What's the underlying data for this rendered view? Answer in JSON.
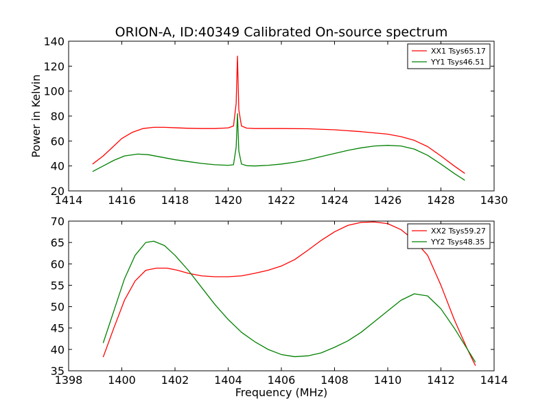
{
  "figure": {
    "title": "ORION-A, ID:40349 Calibrated On-source spectrum",
    "xlabel": "Frequency (MHz)"
  },
  "colors": {
    "xx": "#ff0000",
    "yy": "#008000"
  },
  "chart_data": [
    {
      "type": "line",
      "title": "ORION-A, ID:40349 Calibrated On-source spectrum",
      "xlabel": "",
      "ylabel": "Power in Kelvin",
      "xlim": [
        1414,
        1430
      ],
      "ylim": [
        20,
        140
      ],
      "xticks": [
        "1414",
        "1416",
        "1418",
        "1420",
        "1422",
        "1424",
        "1426",
        "1428",
        "1430"
      ],
      "yticks": [
        "20",
        "40",
        "60",
        "80",
        "100",
        "120",
        "140"
      ],
      "grid": false,
      "legend_position": "top-right",
      "series": [
        {
          "name": "XX1 Tsys65.17",
          "color": "#ff0000",
          "x": [
            1414.9,
            1415.3,
            1415.7,
            1416.0,
            1416.4,
            1416.8,
            1417.2,
            1417.6,
            1418.0,
            1418.5,
            1419.0,
            1419.5,
            1420.0,
            1420.2,
            1420.3,
            1420.35,
            1420.4,
            1420.5,
            1420.7,
            1421.0,
            1422.0,
            1423.0,
            1424.0,
            1425.0,
            1426.0,
            1426.5,
            1427.0,
            1427.5,
            1428.0,
            1428.5,
            1428.9
          ],
          "y": [
            41.5,
            48,
            56,
            62,
            67,
            70,
            71,
            71,
            70.6,
            70.2,
            70,
            70,
            70.5,
            72,
            90,
            128,
            85,
            72,
            70.3,
            70,
            70,
            69.8,
            69,
            67.5,
            65.5,
            63.5,
            60.5,
            55.5,
            48,
            40,
            34
          ]
        },
        {
          "name": "YY1 Tsys46.51",
          "color": "#008000",
          "x": [
            1414.9,
            1415.3,
            1415.7,
            1416.1,
            1416.6,
            1417.0,
            1417.5,
            1418.0,
            1418.5,
            1419.0,
            1419.5,
            1420.0,
            1420.2,
            1420.3,
            1420.35,
            1420.4,
            1420.5,
            1420.7,
            1421.0,
            1421.5,
            1422.0,
            1422.5,
            1423.0,
            1423.5,
            1424.0,
            1424.5,
            1425.0,
            1425.5,
            1426.0,
            1426.5,
            1427.0,
            1427.5,
            1428.0,
            1428.5,
            1428.9
          ],
          "y": [
            35.5,
            40,
            44.5,
            48,
            49.5,
            49,
            47,
            45,
            43.5,
            42,
            41,
            40.5,
            41,
            55,
            82,
            52,
            41.5,
            40.2,
            40,
            40.5,
            41.5,
            43,
            45,
            47.5,
            50,
            52.5,
            54.5,
            56,
            56.5,
            56,
            53.5,
            48.5,
            41.5,
            34,
            28.5
          ]
        }
      ]
    },
    {
      "type": "line",
      "title": "",
      "xlabel": "Frequency (MHz)",
      "ylabel": "",
      "xlim": [
        1398,
        1414
      ],
      "ylim": [
        35,
        70
      ],
      "xticks": [
        "1398",
        "1400",
        "1402",
        "1404",
        "1406",
        "1408",
        "1410",
        "1412",
        "1414"
      ],
      "yticks": [
        "35",
        "40",
        "45",
        "50",
        "55",
        "60",
        "65",
        "70"
      ],
      "grid": false,
      "legend_position": "top-right",
      "series": [
        {
          "name": "XX2 Tsys59.27",
          "color": "#ff0000",
          "x": [
            1399.3,
            1399.7,
            1400.1,
            1400.5,
            1400.9,
            1401.3,
            1401.7,
            1402.1,
            1402.5,
            1403.0,
            1403.5,
            1404.0,
            1404.5,
            1405.0,
            1405.5,
            1406.0,
            1406.5,
            1407.0,
            1407.5,
            1408.0,
            1408.5,
            1409.0,
            1409.5,
            1410.0,
            1410.5,
            1411.0,
            1411.5,
            1412.0,
            1412.5,
            1413.0,
            1413.3
          ],
          "y": [
            38.2,
            45,
            51.5,
            56,
            58.5,
            59,
            59,
            58.5,
            57.8,
            57.2,
            57,
            57,
            57.2,
            57.8,
            58.5,
            59.5,
            61,
            63.2,
            65.5,
            67.5,
            69,
            69.7,
            69.8,
            69.4,
            68,
            65.5,
            62,
            55,
            47,
            40,
            36.2
          ]
        },
        {
          "name": "YY2 Tsys48.35",
          "color": "#008000",
          "x": [
            1399.3,
            1399.7,
            1400.1,
            1400.5,
            1400.9,
            1401.2,
            1401.6,
            1402.0,
            1402.5,
            1403.0,
            1403.5,
            1404.0,
            1404.5,
            1405.0,
            1405.5,
            1406.0,
            1406.3,
            1406.5,
            1407.0,
            1407.5,
            1408.0,
            1408.5,
            1409.0,
            1409.5,
            1410.0,
            1410.5,
            1411.0,
            1411.5,
            1412.0,
            1412.5,
            1413.0,
            1413.3
          ],
          "y": [
            41.5,
            49,
            56.5,
            62,
            65,
            65.3,
            64.3,
            62,
            58.5,
            54.5,
            50.5,
            47,
            44,
            41.8,
            40,
            38.8,
            38.5,
            38.3,
            38.5,
            39.2,
            40.5,
            42,
            44,
            46.5,
            49,
            51.5,
            53,
            52.5,
            49.5,
            45,
            40,
            37
          ]
        }
      ]
    }
  ]
}
